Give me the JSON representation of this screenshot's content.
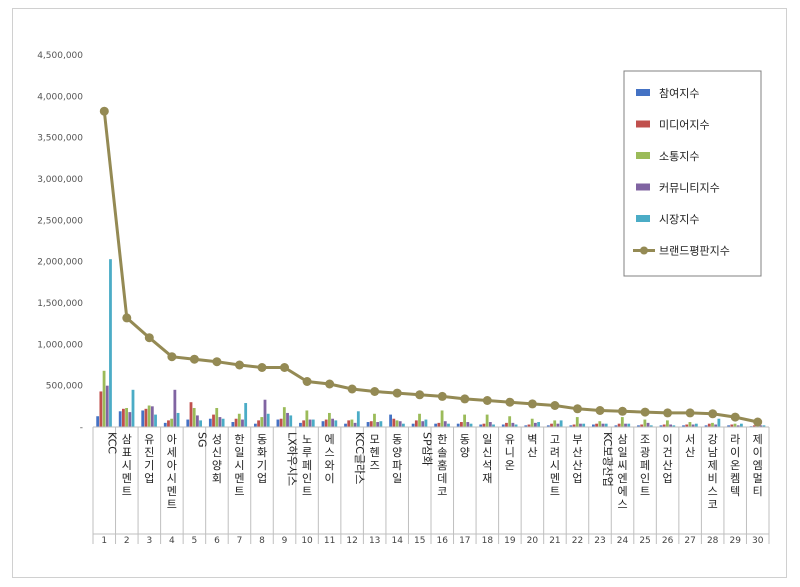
{
  "chart_data": {
    "type": "bar",
    "ylim": [
      0,
      4500000
    ],
    "yticks": [
      "-",
      "500,000",
      "1,000,000",
      "1,500,000",
      "2,000,000",
      "2,500,000",
      "3,000,000",
      "3,500,000",
      "4,000,000",
      "4,500,000"
    ],
    "grid": false,
    "legend_position": "top-right",
    "categories": [
      "KCC",
      "삼표시멘트",
      "유진기업",
      "아세아시멘트",
      "SG",
      "성신양회",
      "한일시멘트",
      "동화기업",
      "LX하우시스",
      "노루페인트",
      "에스와이",
      "KCC글라스",
      "모헨즈",
      "동양파일",
      "SP삼화",
      "한솔홈데코",
      "동양",
      "일신석재",
      "유니온",
      "벽산",
      "고려시멘트",
      "부산산업",
      "KC보광산업",
      "삼일씨엔에스",
      "조광페인트",
      "이건산업",
      "서산",
      "강남제비스코",
      "라이온켐텍",
      "제이엠멀티"
    ],
    "ranks": [
      "1",
      "2",
      "3",
      "4",
      "5",
      "6",
      "7",
      "8",
      "9",
      "10",
      "11",
      "12",
      "13",
      "14",
      "15",
      "16",
      "17",
      "18",
      "19",
      "20",
      "21",
      "22",
      "23",
      "24",
      "25",
      "26",
      "27",
      "28",
      "29",
      "30"
    ],
    "series": [
      {
        "name": "참여지수",
        "type": "bar",
        "color": "#4472C4",
        "values": [
          130000,
          190000,
          200000,
          50000,
          90000,
          100000,
          60000,
          40000,
          90000,
          50000,
          70000,
          40000,
          60000,
          150000,
          40000,
          40000,
          40000,
          30000,
          30000,
          20000,
          20000,
          20000,
          30000,
          20000,
          20000,
          20000,
          20000,
          20000,
          20000,
          10000
        ]
      },
      {
        "name": "미디어지수",
        "type": "bar",
        "color": "#C0504D",
        "values": [
          430000,
          220000,
          220000,
          80000,
          300000,
          150000,
          100000,
          80000,
          100000,
          80000,
          90000,
          80000,
          70000,
          100000,
          80000,
          50000,
          60000,
          40000,
          50000,
          30000,
          40000,
          30000,
          40000,
          40000,
          30000,
          30000,
          30000,
          40000,
          30000,
          20000
        ]
      },
      {
        "name": "소통지수",
        "type": "bar",
        "color": "#9BBB59",
        "values": [
          680000,
          230000,
          260000,
          100000,
          230000,
          230000,
          160000,
          120000,
          240000,
          200000,
          170000,
          90000,
          160000,
          80000,
          160000,
          200000,
          150000,
          150000,
          130000,
          100000,
          80000,
          120000,
          70000,
          120000,
          90000,
          80000,
          60000,
          50000,
          40000,
          40000
        ]
      },
      {
        "name": "커뮤니티지수",
        "type": "bar",
        "color": "#8064A2",
        "values": [
          500000,
          180000,
          250000,
          450000,
          140000,
          120000,
          90000,
          330000,
          170000,
          90000,
          100000,
          50000,
          60000,
          70000,
          70000,
          70000,
          60000,
          60000,
          50000,
          50000,
          40000,
          40000,
          40000,
          40000,
          50000,
          30000,
          30000,
          30000,
          20000,
          20000
        ]
      },
      {
        "name": "시장지수",
        "type": "bar",
        "color": "#4BACC6",
        "values": [
          2030000,
          450000,
          150000,
          170000,
          80000,
          100000,
          290000,
          160000,
          140000,
          90000,
          80000,
          190000,
          70000,
          40000,
          90000,
          40000,
          40000,
          30000,
          30000,
          60000,
          80000,
          40000,
          40000,
          40000,
          20000,
          20000,
          40000,
          100000,
          40000,
          20000
        ]
      },
      {
        "name": "브랜드평판지수",
        "type": "line",
        "color": "#948A54",
        "values": [
          3820000,
          1320000,
          1080000,
          850000,
          820000,
          790000,
          750000,
          720000,
          720000,
          550000,
          520000,
          460000,
          430000,
          410000,
          390000,
          370000,
          340000,
          320000,
          300000,
          280000,
          260000,
          220000,
          200000,
          190000,
          180000,
          170000,
          170000,
          160000,
          120000,
          60000
        ]
      }
    ]
  }
}
